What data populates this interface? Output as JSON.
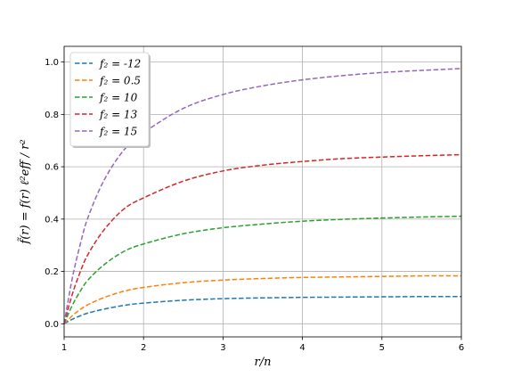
{
  "chart_data": {
    "type": "line",
    "xlabel": "r/n",
    "ylabel": "f̃(r) = f(r) ℓ²eff / r²",
    "xlim": [
      1,
      6
    ],
    "ylim": [
      -0.05,
      1.06
    ],
    "x_ticks": [
      "1",
      "2",
      "3",
      "4",
      "5",
      "6"
    ],
    "y_ticks": [
      "0.0",
      "0.2",
      "0.4",
      "0.6",
      "0.8",
      "1.0"
    ],
    "grid": true,
    "legend_position": "top-left",
    "line_style": "dashed",
    "x": [
      1.0,
      1.1,
      1.2,
      1.3,
      1.5,
      1.75,
      2.0,
      2.5,
      3.0,
      3.5,
      4.0,
      4.5,
      5.0,
      5.5,
      6.0
    ],
    "series": [
      {
        "name": "f₂ = -12",
        "color": "#1f77b4",
        "values": [
          0.0,
          0.017,
          0.03,
          0.041,
          0.056,
          0.07,
          0.079,
          0.09,
          0.096,
          0.099,
          0.101,
          0.102,
          0.103,
          0.104,
          0.104
        ]
      },
      {
        "name": "f₂ = 0.5",
        "color": "#ff7f0e",
        "values": [
          0.0,
          0.03,
          0.054,
          0.073,
          0.1,
          0.124,
          0.139,
          0.157,
          0.167,
          0.173,
          0.177,
          0.179,
          0.181,
          0.183,
          0.183
        ]
      },
      {
        "name": "f₂ = 10",
        "color": "#2ca02c",
        "values": [
          0.0,
          0.069,
          0.123,
          0.167,
          0.225,
          0.276,
          0.305,
          0.344,
          0.367,
          0.381,
          0.392,
          0.399,
          0.404,
          0.408,
          0.411
        ]
      },
      {
        "name": "f₂ = 13",
        "color": "#d62728",
        "values": [
          0.0,
          0.11,
          0.196,
          0.265,
          0.358,
          0.438,
          0.481,
          0.545,
          0.584,
          0.606,
          0.62,
          0.631,
          0.637,
          0.642,
          0.646
        ]
      },
      {
        "name": "f₂ = 15",
        "color": "#9467bd",
        "values": [
          0.0,
          0.17,
          0.3,
          0.406,
          0.547,
          0.663,
          0.73,
          0.823,
          0.876,
          0.909,
          0.932,
          0.948,
          0.96,
          0.968,
          0.975
        ]
      }
    ]
  }
}
